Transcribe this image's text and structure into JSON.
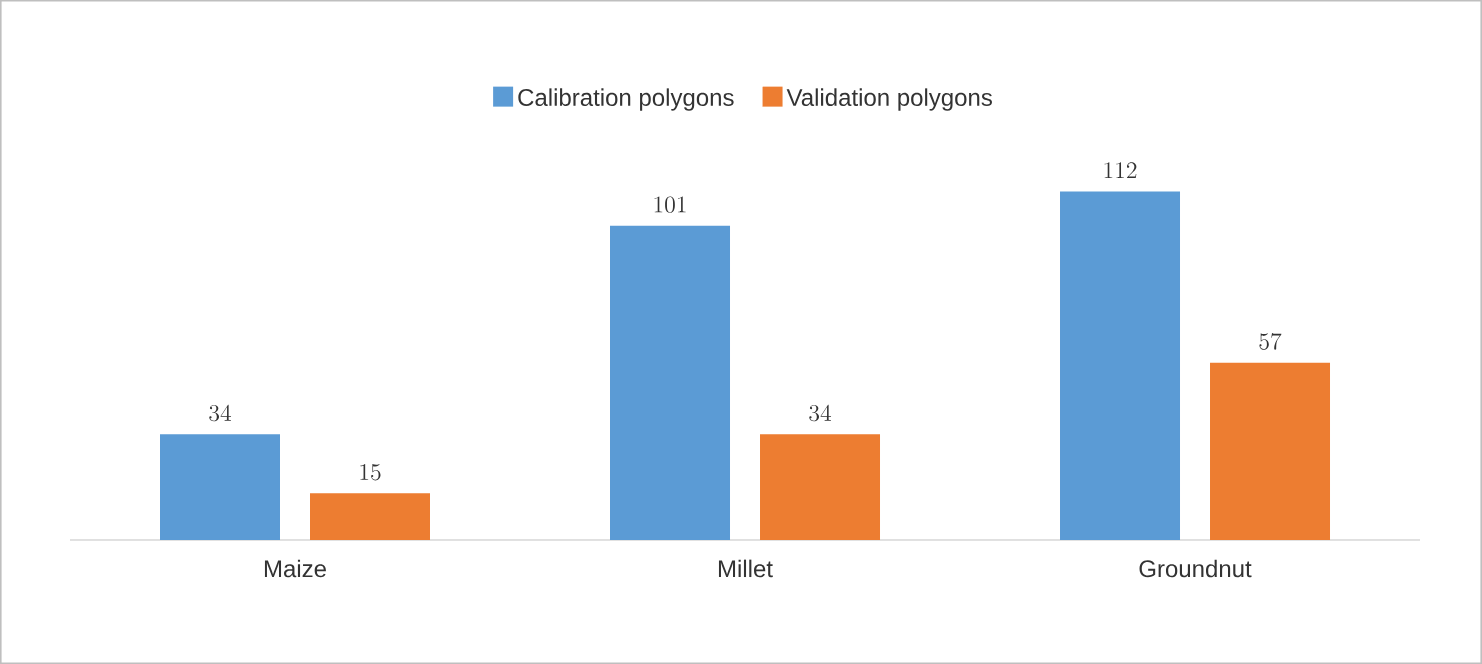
{
  "chart_data": {
    "type": "bar",
    "categories": [
      "Maize",
      "Millet",
      "Groundnut"
    ],
    "series": [
      {
        "name": "Calibration polygons",
        "color": "#5b9bd5",
        "values": [
          34,
          101,
          112
        ]
      },
      {
        "name": "Validation polygons",
        "color": "#ed7d31",
        "values": [
          15,
          34,
          57
        ]
      }
    ],
    "data_labels": true,
    "legend": "top"
  }
}
